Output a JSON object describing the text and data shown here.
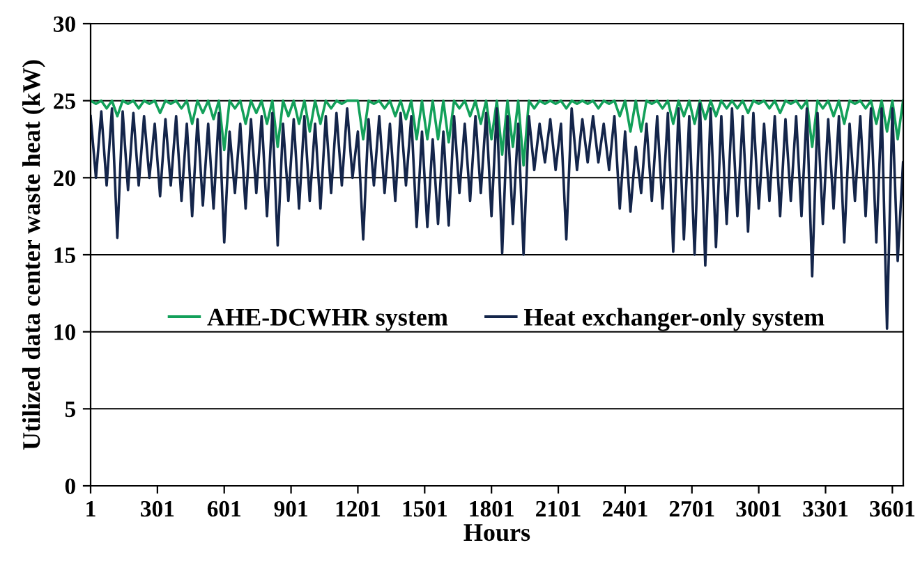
{
  "chart_data": {
    "type": "line",
    "xlabel": "Hours",
    "ylabel": "Utilized data center waste heat (kW)",
    "x": [
      1,
      25,
      49,
      73,
      97,
      121,
      145,
      169,
      193,
      217,
      241,
      265,
      289,
      313,
      337,
      361,
      385,
      409,
      433,
      457,
      481,
      505,
      529,
      553,
      577,
      601,
      625,
      649,
      673,
      697,
      721,
      745,
      769,
      793,
      817,
      841,
      865,
      889,
      913,
      937,
      961,
      985,
      1009,
      1033,
      1057,
      1081,
      1105,
      1129,
      1153,
      1177,
      1201,
      1225,
      1249,
      1273,
      1297,
      1321,
      1345,
      1369,
      1393,
      1417,
      1441,
      1465,
      1489,
      1513,
      1537,
      1561,
      1585,
      1609,
      1633,
      1657,
      1681,
      1705,
      1729,
      1753,
      1777,
      1801,
      1825,
      1849,
      1873,
      1897,
      1921,
      1945,
      1969,
      1993,
      2017,
      2041,
      2065,
      2089,
      2113,
      2137,
      2161,
      2185,
      2209,
      2233,
      2257,
      2281,
      2305,
      2329,
      2353,
      2377,
      2401,
      2425,
      2449,
      2473,
      2497,
      2521,
      2545,
      2569,
      2593,
      2617,
      2641,
      2665,
      2689,
      2713,
      2737,
      2761,
      2785,
      2809,
      2833,
      2857,
      2881,
      2905,
      2929,
      2953,
      2977,
      3001,
      3025,
      3049,
      3073,
      3097,
      3121,
      3145,
      3169,
      3193,
      3217,
      3241,
      3265,
      3289,
      3313,
      3337,
      3361,
      3385,
      3409,
      3433,
      3457,
      3481,
      3505,
      3529,
      3553,
      3577,
      3601,
      3625,
      3649
    ],
    "series": [
      {
        "name": "AHE-DCWHR system",
        "color": "#13a05a",
        "values": [
          25,
          24.8,
          25,
          24.5,
          25,
          24,
          25,
          24.8,
          25,
          24.5,
          25,
          24.8,
          25,
          24.2,
          25,
          24.8,
          25,
          24.5,
          25,
          23.5,
          25,
          24.2,
          25,
          23.8,
          25,
          21.8,
          25,
          24.5,
          25,
          23.5,
          25,
          24.2,
          25,
          23.5,
          25,
          22,
          25,
          24,
          25,
          23.5,
          25,
          23,
          25,
          23.5,
          25,
          24.5,
          25,
          24.8,
          25,
          25,
          25,
          22.5,
          25,
          24.8,
          25,
          24.5,
          25,
          24,
          25,
          23.8,
          25,
          22.5,
          25,
          22.5,
          25,
          22.5,
          25,
          22.3,
          25,
          24.5,
          25,
          24,
          25,
          23.5,
          25,
          22.5,
          25,
          21.5,
          25,
          22,
          25,
          20.8,
          25,
          24.5,
          25,
          24.8,
          25,
          24.8,
          25,
          24.5,
          25,
          24.8,
          25,
          24.8,
          25,
          24.5,
          25,
          24.8,
          25,
          24,
          25,
          23,
          25,
          23,
          25,
          24.8,
          25,
          24.5,
          25,
          23.5,
          25,
          24,
          25,
          23.5,
          25,
          23.8,
          25,
          24,
          25,
          24.5,
          25,
          24.5,
          25,
          24.2,
          25,
          24.8,
          25,
          24.5,
          25,
          24.2,
          25,
          24.8,
          25,
          24.5,
          25,
          22,
          25,
          24.5,
          25,
          24,
          25,
          23.5,
          25,
          24.8,
          25,
          24.5,
          25,
          23.5,
          25,
          23,
          25,
          22.5,
          25
        ]
      },
      {
        "name": "Heat exchanger-only system",
        "color": "#14254a",
        "values": [
          24,
          20,
          24.3,
          19.5,
          24.5,
          16.1,
          24.3,
          19.2,
          24.2,
          19.5,
          24,
          20,
          23.5,
          18.8,
          23.8,
          19.5,
          24,
          18.5,
          23.5,
          17.5,
          23.8,
          18.2,
          23.5,
          18,
          24.2,
          15.8,
          23,
          19,
          23.5,
          18,
          23.8,
          19,
          24,
          17.5,
          24.2,
          15.6,
          23.5,
          18.5,
          23.8,
          18,
          24,
          18.5,
          23.5,
          18,
          24,
          19,
          24.2,
          19.5,
          24.5,
          20,
          23,
          16,
          23.8,
          19.5,
          24,
          19,
          23.5,
          18.5,
          24.2,
          19.5,
          24,
          16.8,
          23,
          16.8,
          22.5,
          17,
          23,
          16.9,
          24,
          19,
          23.5,
          18.5,
          24,
          19,
          24.2,
          17.5,
          24.5,
          15.1,
          24,
          17,
          23.5,
          15,
          24,
          20.5,
          23.5,
          21,
          23.8,
          20.5,
          23.5,
          16,
          24.5,
          20.5,
          23.8,
          21,
          24,
          21,
          23.5,
          20.5,
          24,
          18,
          23,
          17.8,
          22,
          19,
          23.5,
          18.5,
          24,
          18,
          24.2,
          15.2,
          24.5,
          16,
          24,
          15,
          24.8,
          14.3,
          24.5,
          15.5,
          24,
          17,
          24.5,
          17.5,
          24,
          16.5,
          24.2,
          18,
          23.5,
          18.5,
          24,
          17.5,
          23.8,
          18.5,
          24,
          17.5,
          24.5,
          13.6,
          24.2,
          17,
          23.8,
          18,
          24,
          15.8,
          23.5,
          18.5,
          24,
          17.5,
          24.5,
          15.8,
          24.5,
          10.2,
          24.5,
          14.6,
          21
        ]
      }
    ],
    "xlim": [
      1,
      3650
    ],
    "xticks": [
      1,
      301,
      601,
      901,
      1201,
      1501,
      1801,
      2101,
      2401,
      2701,
      3001,
      3301,
      3601
    ],
    "ylim": [
      0,
      30
    ],
    "yticks": [
      0,
      5,
      10,
      15,
      20,
      25,
      30
    ],
    "grid": "y",
    "legend": "bottom",
    "marker": "none",
    "line_style": "solid"
  }
}
